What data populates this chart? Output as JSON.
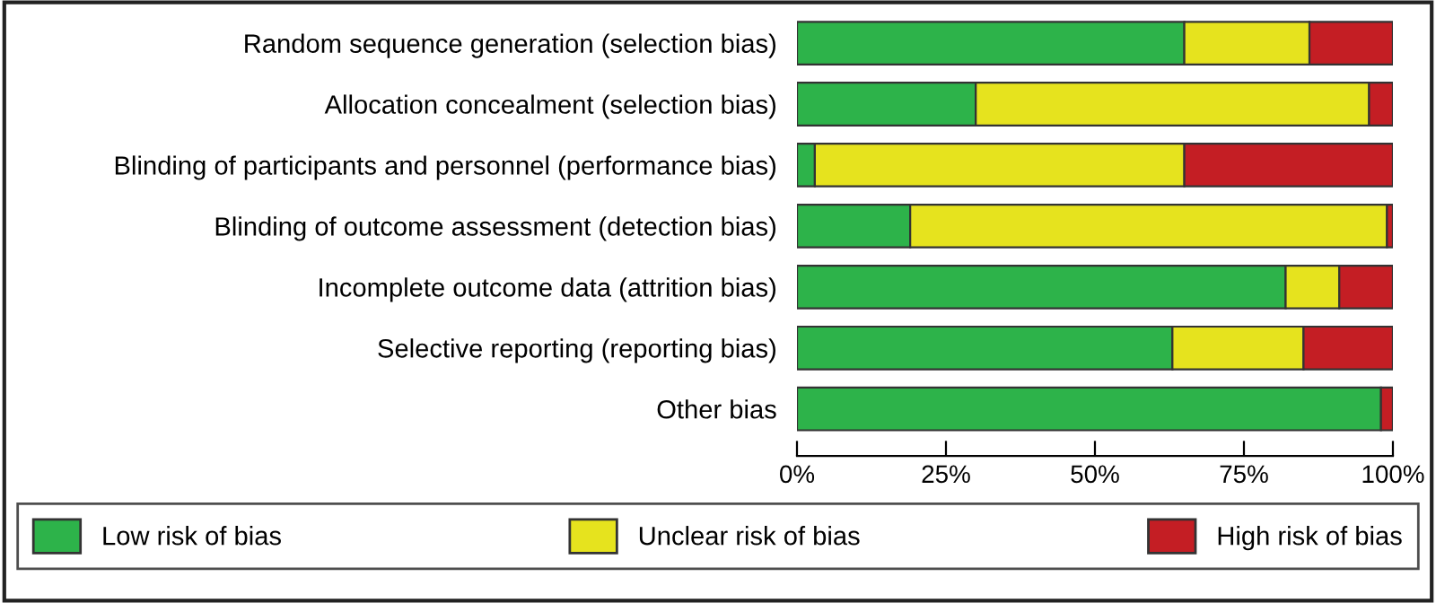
{
  "chart_data": {
    "type": "bar",
    "orientation": "horizontal",
    "stacked": true,
    "categories": [
      "Random sequence generation (selection bias)",
      "Allocation concealment (selection bias)",
      "Blinding of participants and personnel (performance bias)",
      "Blinding of outcome assessment (detection bias)",
      "Incomplete outcome data (attrition bias)",
      "Selective reporting (reporting bias)",
      "Other bias"
    ],
    "series": [
      {
        "name": "Low risk of bias",
        "color": "#2db34a",
        "values": [
          65,
          30,
          3,
          19,
          82,
          63,
          98
        ]
      },
      {
        "name": "Unclear risk of bias",
        "color": "#e6e31e",
        "values": [
          21,
          66,
          62,
          80,
          9,
          22,
          0
        ]
      },
      {
        "name": "High risk of bias",
        "color": "#c41e24",
        "values": [
          14,
          4,
          35,
          1,
          9,
          15,
          2
        ]
      }
    ],
    "xlim": [
      0,
      100
    ],
    "xticks": [
      {
        "value": 0,
        "label": "0%"
      },
      {
        "value": 25,
        "label": "25%"
      },
      {
        "value": 50,
        "label": "50%"
      },
      {
        "value": 75,
        "label": "75%"
      },
      {
        "value": 100,
        "label": "100%"
      }
    ],
    "grid": false,
    "legend": "bottom"
  }
}
